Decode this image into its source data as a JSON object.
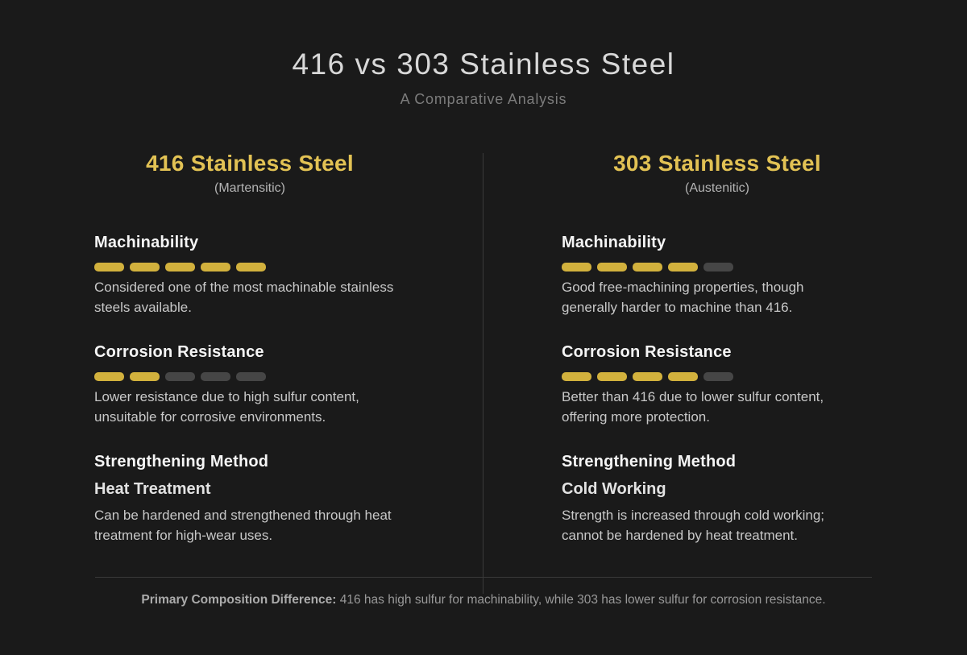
{
  "header": {
    "title": "416 vs 303 Stainless Steel",
    "subtitle": "A Comparative Analysis"
  },
  "colors": {
    "background": "#1a1a1a",
    "gold_accent": "#e2c254",
    "bar_filled": "#d2b13d",
    "bar_empty": "#464646",
    "divider": "#3a3a3a"
  },
  "columns": [
    {
      "name": "416 Stainless Steel",
      "type": "(Martensitic)",
      "sections": [
        {
          "title": "Machinability",
          "rating": 5,
          "max": 5,
          "description": "Considered one of the most machinable stainless steels available."
        },
        {
          "title": "Corrosion Resistance",
          "rating": 2,
          "max": 5,
          "description": "Lower resistance due to high sulfur content, unsuitable for corrosive environments."
        },
        {
          "title": "Strengthening Method",
          "method": "Heat Treatment",
          "description": "Can be hardened and strengthened through heat treatment for high-wear uses."
        }
      ]
    },
    {
      "name": "303 Stainless Steel",
      "type": "(Austenitic)",
      "sections": [
        {
          "title": "Machinability",
          "rating": 4,
          "max": 5,
          "description": "Good free-machining properties, though generally harder to machine than 416."
        },
        {
          "title": "Corrosion Resistance",
          "rating": 4,
          "max": 5,
          "description": "Better than 416 due to lower sulfur content, offering more protection."
        },
        {
          "title": "Strengthening Method",
          "method": "Cold Working",
          "description": "Strength is increased through cold working; cannot be hardened by heat treatment."
        }
      ]
    }
  ],
  "footer": {
    "label": "Primary Composition Difference:",
    "text": "416 has high sulfur for machinability, while 303 has lower sulfur for corrosion resistance."
  },
  "chart_data": {
    "type": "bar",
    "title": "416 vs 303 Stainless Steel",
    "subtitle": "A Comparative Analysis",
    "categories": [
      "Machinability",
      "Corrosion Resistance"
    ],
    "series": [
      {
        "name": "416 Stainless Steel (Martensitic)",
        "values": [
          5,
          2
        ]
      },
      {
        "name": "303 Stainless Steel (Austenitic)",
        "values": [
          4,
          4
        ]
      }
    ],
    "ylim": [
      0,
      5
    ],
    "annotations": [
      "416 Strengthening Method: Heat Treatment",
      "303 Strengthening Method: Cold Working"
    ],
    "legend_position": "column-headers",
    "grid": false
  }
}
